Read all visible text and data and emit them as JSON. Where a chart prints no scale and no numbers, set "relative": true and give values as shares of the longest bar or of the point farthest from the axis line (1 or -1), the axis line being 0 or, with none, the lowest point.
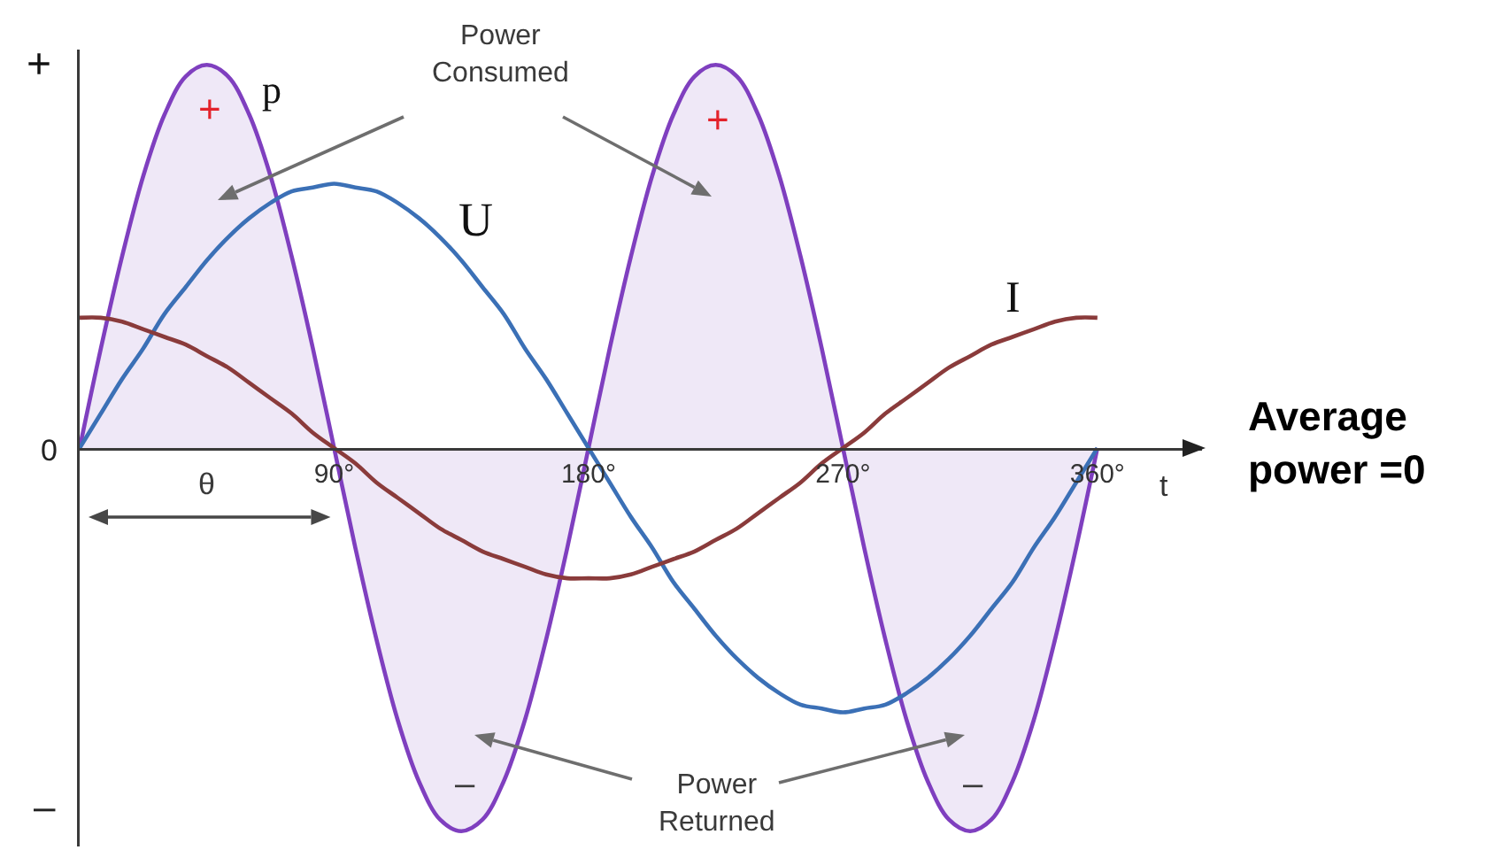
{
  "chart_data": {
    "type": "line",
    "relative": true,
    "x": [
      0,
      7.5,
      15,
      22.5,
      30,
      37.5,
      45,
      52.5,
      60,
      67.5,
      75,
      82.5,
      90,
      97.5,
      105,
      112.5,
      120,
      127.5,
      135,
      142.5,
      150,
      157.5,
      165,
      172.5,
      180,
      187.5,
      195,
      202.5,
      210,
      217.5,
      225,
      232.5,
      240,
      247.5,
      255,
      262.5,
      270,
      277.5,
      285,
      292.5,
      300,
      307.5,
      315,
      322.5,
      330,
      337.5,
      345,
      352.5,
      360
    ],
    "xlim": [
      0,
      397
    ],
    "xticks": [
      {
        "value": 90,
        "label": "90°"
      },
      {
        "value": 180,
        "label": "180°"
      },
      {
        "value": 270,
        "label": "270°"
      },
      {
        "value": 360,
        "label": "360°"
      }
    ],
    "xlabel": "t",
    "series": [
      {
        "name": "p",
        "type": "area",
        "color": "#7f3fbf",
        "values": [
          0,
          0.26,
          0.5,
          0.71,
          0.87,
          0.97,
          1,
          0.97,
          0.87,
          0.71,
          0.5,
          0.26,
          0,
          -0.26,
          -0.5,
          -0.71,
          -0.87,
          -0.97,
          -1,
          -0.97,
          -0.87,
          -0.71,
          -0.5,
          -0.26,
          0,
          0.26,
          0.5,
          0.71,
          0.87,
          0.97,
          1,
          0.97,
          0.87,
          0.71,
          0.5,
          0.26,
          0,
          -0.26,
          -0.5,
          -0.71,
          -0.87,
          -0.97,
          -1,
          -0.97,
          -0.87,
          -0.71,
          -0.5,
          -0.26,
          0
        ]
      },
      {
        "name": "U",
        "color": "#3b70b6",
        "values": [
          0,
          0.09,
          0.18,
          0.26,
          0.35,
          0.42,
          0.49,
          0.55,
          0.6,
          0.64,
          0.67,
          0.68,
          0.69,
          0.68,
          0.67,
          0.64,
          0.6,
          0.55,
          0.49,
          0.42,
          0.35,
          0.26,
          0.18,
          0.09,
          0,
          -0.09,
          -0.18,
          -0.26,
          -0.35,
          -0.42,
          -0.49,
          -0.55,
          -0.6,
          -0.64,
          -0.67,
          -0.68,
          -0.69,
          -0.68,
          -0.67,
          -0.64,
          -0.6,
          -0.55,
          -0.49,
          -0.42,
          -0.35,
          -0.26,
          -0.18,
          -0.09,
          0
        ]
      },
      {
        "name": "I",
        "color": "#8a3b3b",
        "values": [
          0.34,
          0.34,
          0.33,
          0.31,
          0.29,
          0.27,
          0.24,
          0.21,
          0.17,
          0.13,
          0.09,
          0.04,
          0,
          -0.04,
          -0.09,
          -0.13,
          -0.17,
          -0.21,
          -0.24,
          -0.27,
          -0.29,
          -0.31,
          -0.33,
          -0.34,
          -0.34,
          -0.34,
          -0.33,
          -0.31,
          -0.29,
          -0.27,
          -0.24,
          -0.21,
          -0.17,
          -0.13,
          -0.09,
          -0.04,
          0,
          0.04,
          0.09,
          0.13,
          0.17,
          0.21,
          0.24,
          0.27,
          0.29,
          0.31,
          0.33,
          0.34,
          0.34
        ]
      }
    ],
    "annotations": [
      "Power\nConsumed",
      "+",
      "+",
      "–",
      "–",
      "Power\nReturned",
      "θ",
      "+",
      "0",
      "–",
      "Average\npower =0"
    ]
  }
}
